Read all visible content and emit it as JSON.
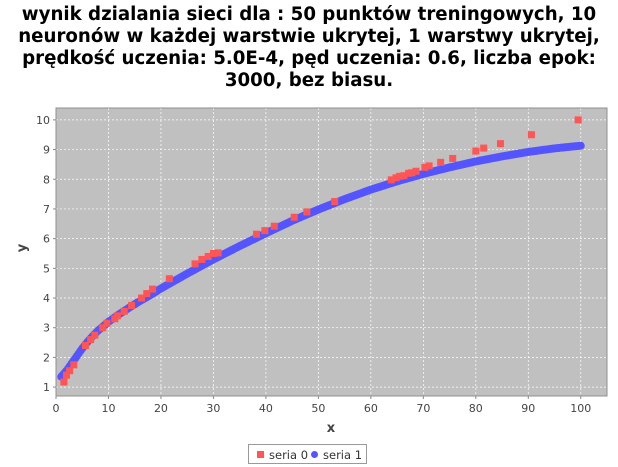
{
  "chart_data": {
    "type": "scatter",
    "title_lines": [
      "wynik dzialania sieci dla : 50 punktów treningowych, 10",
      "neuronów w każdej warstwie ukrytej, 1 warstwy ukrytej,",
      "prędkość uczenia: 5.0E-4, pęd uczenia: 0.6, liczba epok:",
      "3000, bez biasu."
    ],
    "xlabel": "x",
    "ylabel": "y",
    "xlim": [
      0,
      105
    ],
    "ylim": [
      0.7,
      10.4
    ],
    "x_ticks": [
      0,
      10,
      20,
      30,
      40,
      50,
      60,
      70,
      80,
      90,
      100
    ],
    "y_ticks": [
      1,
      2,
      3,
      4,
      5,
      6,
      7,
      8,
      9,
      10
    ],
    "grid": true,
    "legend_position": "bottom",
    "background": "#c0c0c0",
    "series": [
      {
        "name": "seria 0",
        "marker": "square",
        "color": "#ff5555",
        "points": [
          [
            1.5,
            1.17
          ],
          [
            2.0,
            1.4
          ],
          [
            2.6,
            1.55
          ],
          [
            3.4,
            1.75
          ],
          [
            5.6,
            2.4
          ],
          [
            6.6,
            2.6
          ],
          [
            7.4,
            2.75
          ],
          [
            8.9,
            3.0
          ],
          [
            9.7,
            3.15
          ],
          [
            11.2,
            3.3
          ],
          [
            11.7,
            3.4
          ],
          [
            13.0,
            3.55
          ],
          [
            14.4,
            3.75
          ],
          [
            16.3,
            4.0
          ],
          [
            17.3,
            4.15
          ],
          [
            18.4,
            4.3
          ],
          [
            21.6,
            4.65
          ],
          [
            26.5,
            5.15
          ],
          [
            27.8,
            5.3
          ],
          [
            29.0,
            5.4
          ],
          [
            30.0,
            5.5
          ],
          [
            30.9,
            5.52
          ],
          [
            38.2,
            6.15
          ],
          [
            39.8,
            6.27
          ],
          [
            41.6,
            6.42
          ],
          [
            45.4,
            6.72
          ],
          [
            47.8,
            6.9
          ],
          [
            53.1,
            7.25
          ],
          [
            63.9,
            7.98
          ],
          [
            64.8,
            8.05
          ],
          [
            65.5,
            8.1
          ],
          [
            66.3,
            8.12
          ],
          [
            67.2,
            8.2
          ],
          [
            67.8,
            8.22
          ],
          [
            68.6,
            8.27
          ],
          [
            70.3,
            8.4
          ],
          [
            71.1,
            8.45
          ],
          [
            73.3,
            8.57
          ],
          [
            75.6,
            8.7
          ],
          [
            80.0,
            8.95
          ],
          [
            81.5,
            9.05
          ],
          [
            84.7,
            9.2
          ],
          [
            90.6,
            9.5
          ],
          [
            99.5,
            10.0
          ]
        ]
      },
      {
        "name": "seria 1",
        "marker": "circle",
        "color": "#5555ff",
        "curve": [
          [
            1,
            1.35
          ],
          [
            2,
            1.55
          ],
          [
            3,
            1.8
          ],
          [
            4,
            2.05
          ],
          [
            5,
            2.3
          ],
          [
            6,
            2.52
          ],
          [
            7,
            2.72
          ],
          [
            8,
            2.9
          ],
          [
            9,
            3.05
          ],
          [
            10,
            3.2
          ],
          [
            12,
            3.45
          ],
          [
            14,
            3.68
          ],
          [
            16,
            3.9
          ],
          [
            18,
            4.1
          ],
          [
            20,
            4.32
          ],
          [
            25,
            4.82
          ],
          [
            30,
            5.3
          ],
          [
            35,
            5.75
          ],
          [
            40,
            6.18
          ],
          [
            45,
            6.6
          ],
          [
            50,
            6.98
          ],
          [
            55,
            7.33
          ],
          [
            60,
            7.65
          ],
          [
            65,
            7.93
          ],
          [
            70,
            8.18
          ],
          [
            75,
            8.4
          ],
          [
            80,
            8.6
          ],
          [
            85,
            8.77
          ],
          [
            90,
            8.92
          ],
          [
            95,
            9.04
          ],
          [
            100,
            9.13
          ]
        ]
      }
    ]
  }
}
